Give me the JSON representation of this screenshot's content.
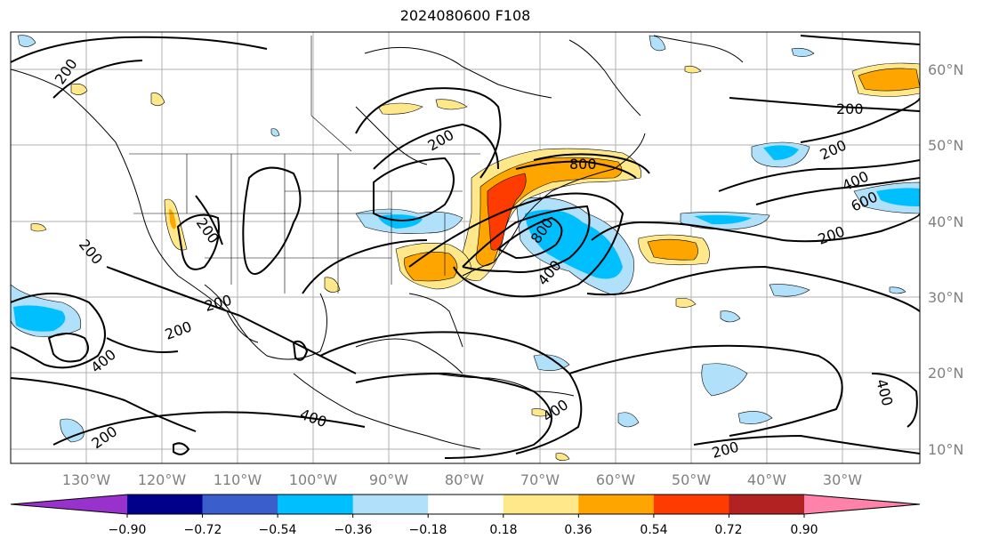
{
  "title": "2024080600 F108",
  "lat_labels": [
    "60°N",
    "50°N",
    "40°N",
    "30°N",
    "20°N",
    "10°N"
  ],
  "lon_labels": [
    "130°W",
    "120°W",
    "110°W",
    "100°W",
    "90°W",
    "80°W",
    "70°W",
    "60°W",
    "50°W",
    "40°W",
    "30°W"
  ],
  "contour_labels": [
    "200",
    "200",
    "200",
    "200",
    "400",
    "600",
    "200",
    "200",
    "200",
    "200",
    "200",
    "400",
    "400",
    "400",
    "800",
    "800",
    "400",
    "200",
    "200",
    "400"
  ],
  "colorbar": {
    "ticks": [
      "−0.90",
      "−0.72",
      "−0.54",
      "−0.36",
      "−0.18",
      "0.18",
      "0.36",
      "0.54",
      "0.72",
      "0.90"
    ],
    "colors": [
      "#9932cc",
      "#00008b",
      "#3a5fcd",
      "#00bfff",
      "#b0e0fa",
      "#ffffff",
      "#ffe88a",
      "#ffa500",
      "#ff3c00",
      "#b22222",
      "#ff82ab"
    ]
  }
}
